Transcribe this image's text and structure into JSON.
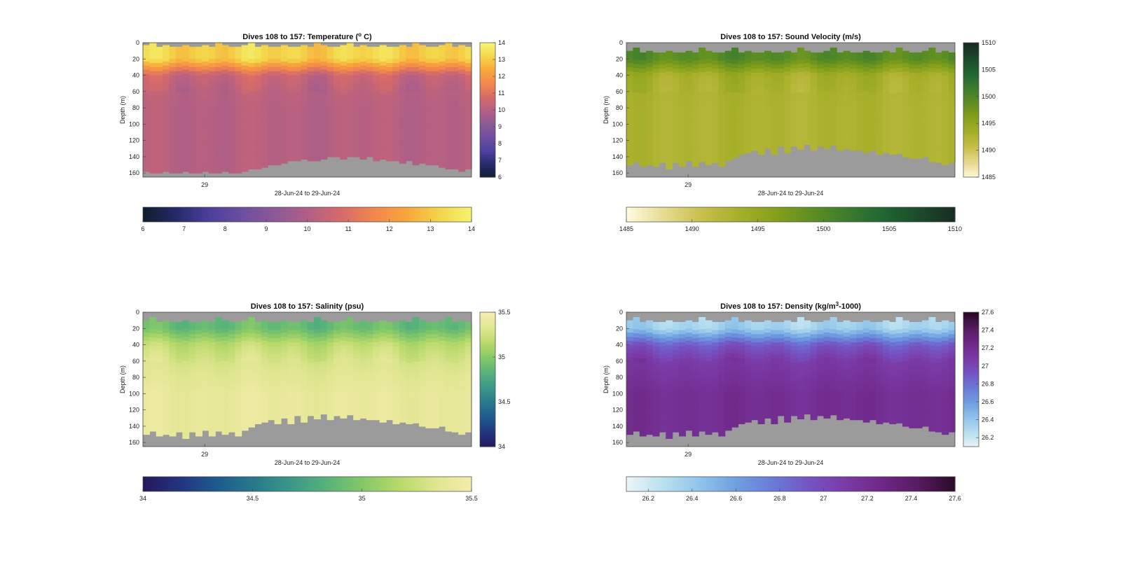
{
  "chart_data": [
    {
      "type": "heatmap",
      "title": "Dives 108 to 157: Temperature (",
      "title_sup": "o",
      "title_tail": " C)",
      "ylabel": "Depth (m)",
      "xlabel": "28-Jun-24 to 29-Jun-24",
      "x_ticks": [
        "29"
      ],
      "y_ticks": [
        0,
        20,
        40,
        60,
        80,
        100,
        120,
        140,
        160
      ],
      "ylim": [
        0,
        165
      ],
      "dives": [
        108,
        157
      ],
      "depth_bins": [
        0,
        20,
        40,
        60,
        80,
        100,
        120,
        140,
        160
      ],
      "profile_values": [
        13.2,
        13.2,
        10.5,
        10.2,
        10.1,
        10.1,
        10.1,
        10.1,
        10.1
      ],
      "surface_gap_depth_m": 3,
      "bottom_depth_m": [
        157,
        158,
        158,
        156,
        156,
        156,
        156,
        156,
        156,
        156,
        156,
        157,
        157,
        157,
        156,
        157,
        155,
        153,
        150,
        147,
        147,
        145,
        143,
        142,
        142,
        142,
        142,
        141,
        140,
        140,
        140,
        140,
        140,
        140,
        140,
        141,
        142,
        142,
        143,
        144,
        144,
        146,
        147,
        149,
        150,
        151,
        152,
        153,
        154,
        155
      ],
      "colorbar": {
        "min": 6,
        "max": 14,
        "ticks": [
          "6",
          "7",
          "8",
          "9",
          "10",
          "11",
          "12",
          "13",
          "14"
        ]
      },
      "colormap": [
        "#0f1e2f",
        "#262a6b",
        "#4d3f9e",
        "#6e4ea0",
        "#8c5a96",
        "#b25f85",
        "#d66a6a",
        "#f2874e",
        "#f8a63b",
        "#f3d54a",
        "#f7f473"
      ]
    },
    {
      "type": "heatmap",
      "title": "Dives 108 to 157: Sound Velocity (m/s)",
      "title_sup": "",
      "title_tail": "",
      "ylabel": "Depth (m)",
      "xlabel": "28-Jun-24 to 29-Jun-24",
      "x_ticks": [
        "29"
      ],
      "y_ticks": [
        0,
        20,
        40,
        60,
        80,
        100,
        120,
        140,
        160
      ],
      "ylim": [
        0,
        165
      ],
      "dives": [
        108,
        157
      ],
      "depth_bins": [
        0,
        20,
        40,
        60,
        80,
        100,
        120,
        140,
        160
      ],
      "profile_values": [
        1499.5,
        1499.5,
        1493.5,
        1493,
        1492.8,
        1492.8,
        1492.8,
        1492.8,
        1492.8
      ],
      "surface_gap_depth_m": 10,
      "bottom_depth_m": [
        150,
        145,
        152,
        146,
        151,
        145,
        152,
        146,
        150,
        145,
        151,
        146,
        149,
        144,
        148,
        142,
        141,
        137,
        133,
        130,
        134,
        128,
        133,
        127,
        132,
        126,
        131,
        125,
        130,
        124,
        130,
        125,
        131,
        126,
        132,
        128,
        133,
        130,
        135,
        132,
        137,
        134,
        140,
        138,
        142,
        140,
        145,
        143,
        148,
        146
      ],
      "colorbar": {
        "min": 1485,
        "max": 1510,
        "ticks": [
          "1485",
          "1490",
          "1495",
          "1500",
          "1505",
          "1510"
        ]
      },
      "colormap": [
        "#fefbdc",
        "#e7da92",
        "#c8c04e",
        "#a8b02a",
        "#86a11b",
        "#5f8f22",
        "#3b7c2e",
        "#1f6632",
        "#1c4a2c",
        "#172b20"
      ]
    },
    {
      "type": "heatmap",
      "title": "Dives 108 to 157: Salinity (psu)",
      "title_sup": "",
      "title_tail": "",
      "ylabel": "Depth (m)",
      "xlabel": "28-Jun-24 to 29-Jun-24",
      "x_ticks": [
        "29"
      ],
      "y_ticks": [
        0,
        20,
        40,
        60,
        80,
        100,
        120,
        140,
        160
      ],
      "ylim": [
        0,
        165
      ],
      "dives": [
        108,
        157
      ],
      "depth_bins": [
        0,
        20,
        40,
        60,
        80,
        100,
        120,
        140,
        160
      ],
      "profile_values": [
        34.9,
        34.9,
        35.2,
        35.3,
        35.35,
        35.4,
        35.4,
        35.4,
        35.4
      ],
      "surface_gap_depth_m": 10,
      "bottom_depth_m": [
        150,
        145,
        152,
        146,
        151,
        145,
        152,
        146,
        150,
        145,
        151,
        146,
        149,
        144,
        148,
        142,
        141,
        137,
        133,
        130,
        134,
        128,
        133,
        127,
        132,
        126,
        131,
        125,
        130,
        124,
        130,
        125,
        131,
        126,
        132,
        128,
        133,
        130,
        135,
        132,
        137,
        134,
        140,
        138,
        142,
        140,
        145,
        143,
        148,
        146
      ],
      "colorbar": {
        "min": 34,
        "max": 35.5,
        "ticks": [
          "34",
          "34.5",
          "35",
          "35.5"
        ]
      },
      "colormap": [
        "#26185f",
        "#23357f",
        "#1e5a8f",
        "#277a8c",
        "#3a9788",
        "#57b27a",
        "#85c868",
        "#b8d96a",
        "#e0e690",
        "#f6ecae"
      ]
    },
    {
      "type": "heatmap",
      "title": "Dives 108 to 157: Density (kg/m",
      "title_sup": "3",
      "title_tail": "-1000)",
      "ylabel": "Depth (m)",
      "xlabel": "28-Jun-24 to 29-Jun-24",
      "x_ticks": [
        "29"
      ],
      "y_ticks": [
        0,
        20,
        40,
        60,
        80,
        100,
        120,
        140,
        160
      ],
      "ylim": [
        0,
        165
      ],
      "dives": [
        108,
        157
      ],
      "depth_bins": [
        0,
        20,
        40,
        60,
        80,
        100,
        120,
        140,
        160
      ],
      "profile_values": [
        26.3,
        26.35,
        26.9,
        27.1,
        27.15,
        27.2,
        27.2,
        27.2,
        27.2
      ],
      "surface_gap_depth_m": 10,
      "bottom_depth_m": [
        150,
        145,
        152,
        146,
        151,
        145,
        152,
        146,
        150,
        145,
        151,
        146,
        149,
        144,
        148,
        142,
        141,
        137,
        133,
        130,
        134,
        128,
        133,
        127,
        132,
        126,
        131,
        125,
        130,
        124,
        130,
        125,
        131,
        126,
        132,
        128,
        133,
        130,
        135,
        132,
        137,
        134,
        140,
        138,
        142,
        140,
        145,
        143,
        148,
        146
      ],
      "colorbar": {
        "min": 26.1,
        "max": 27.6,
        "ticks": [
          "26.2",
          "26.4",
          "26.6",
          "26.8",
          "27",
          "27.2",
          "27.4",
          "27.6"
        ]
      },
      "colormap": [
        "#e9f4f6",
        "#b9dff0",
        "#8fc3ea",
        "#6f9ee0",
        "#6a7ad6",
        "#7652c2",
        "#7a3aa5",
        "#6e2785",
        "#551a5e",
        "#2a0a25"
      ]
    }
  ]
}
